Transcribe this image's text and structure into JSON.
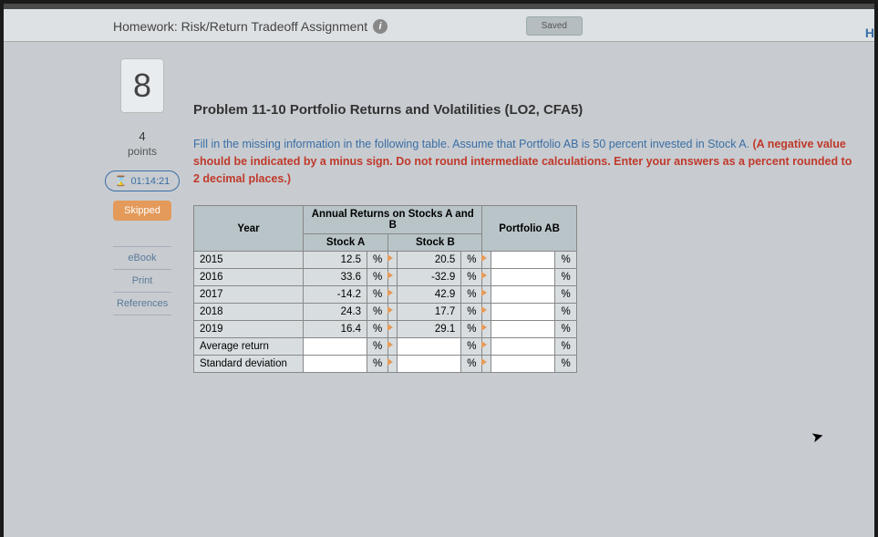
{
  "header": {
    "title": "Homework: Risk/Return Tradeoff Assignment",
    "saved_label": "Saved",
    "right_char": "H"
  },
  "sidebar": {
    "question_number": "8",
    "points_value": "4",
    "points_label": "points",
    "timer": "01:14:21",
    "skipped_label": "Skipped",
    "links": [
      "eBook",
      "Print",
      "References"
    ]
  },
  "problem": {
    "title": "Problem 11-10 Portfolio Returns and Volatilities (LO2, CFA5)",
    "text_main": "Fill in the missing information in the following table. Assume that Portfolio AB is 50 percent invested in Stock A. ",
    "text_hint": "(A negative value should be indicated by a minus sign. Do not round intermediate calculations. Enter your answers as a percent rounded to 2 decimal places.)"
  },
  "table": {
    "span_header": "Annual Returns on Stocks A and B",
    "columns": [
      "Year",
      "Stock A",
      "Stock B",
      "Portfolio AB"
    ],
    "rows": [
      {
        "year": "2015",
        "a": "12.5",
        "b": "20.5"
      },
      {
        "year": "2016",
        "a": "33.6",
        "b": "-32.9"
      },
      {
        "year": "2017",
        "a": "-14.2",
        "b": "42.9"
      },
      {
        "year": "2018",
        "a": "24.3",
        "b": "17.7"
      },
      {
        "year": "2019",
        "a": "16.4",
        "b": "29.1"
      }
    ],
    "summary_rows": [
      "Average return",
      "Standard deviation"
    ],
    "pct": "%",
    "colors": {
      "header_bg": "#b8c4c8",
      "cell_bg": "#d8dde0",
      "border": "#888888",
      "flag": "#e49a5a"
    }
  }
}
